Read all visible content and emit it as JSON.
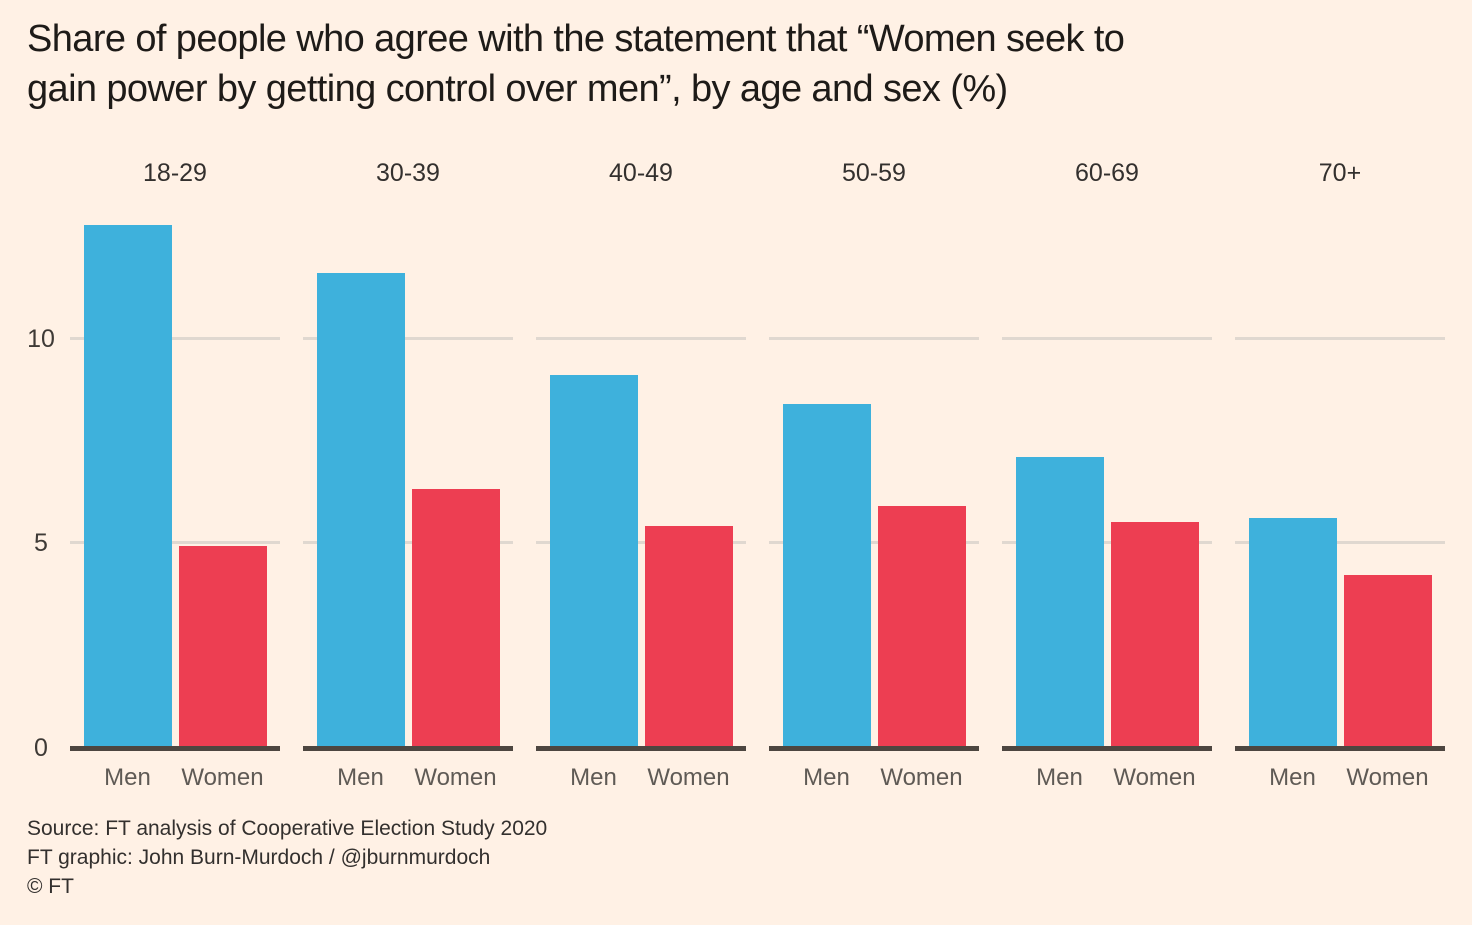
{
  "title": {
    "line1": "Share of people who agree with the statement that “Women seek to",
    "line2": "gain power by getting control over men”, by age and sex (%)"
  },
  "chart_data": {
    "type": "bar",
    "title": "Share of people who agree with the statement that “Women seek to gain power by getting control over men”, by age and sex (%)",
    "categories": [
      "18-29",
      "30-39",
      "40-49",
      "50-59",
      "60-69",
      "70+"
    ],
    "series": [
      {
        "name": "Men",
        "color": "#3EB1DC",
        "values": [
          12.8,
          11.6,
          9.1,
          8.4,
          7.1,
          5.6
        ]
      },
      {
        "name": "Women",
        "color": "#ED3E52",
        "values": [
          4.9,
          6.3,
          5.4,
          5.9,
          5.5,
          4.2
        ]
      }
    ],
    "xlabel": "",
    "ylabel": "",
    "yticks": [
      0,
      5,
      10
    ],
    "ylim": [
      0,
      13.5
    ],
    "grid": "horizontal gridlines at 5 and 10, drawn per age-group panel",
    "legend_position": "none (Men/Women labels under each bar pair)"
  },
  "footer": {
    "source": "Source: FT analysis of Cooperative Election Study 2020",
    "credit": "FT graphic: John Burn-Murdoch / @jburnmurdoch",
    "copyright": "© FT"
  },
  "colors": {
    "background": "#FFF1E5",
    "men_bar": "#3EB1DC",
    "women_bar": "#ED3E52",
    "gridline": "#E0D8D0",
    "axis_baseline": "#4D4640",
    "title_text": "#1E1B18",
    "tick_text": "#3E3A36",
    "category_text": "#5F5A55"
  }
}
